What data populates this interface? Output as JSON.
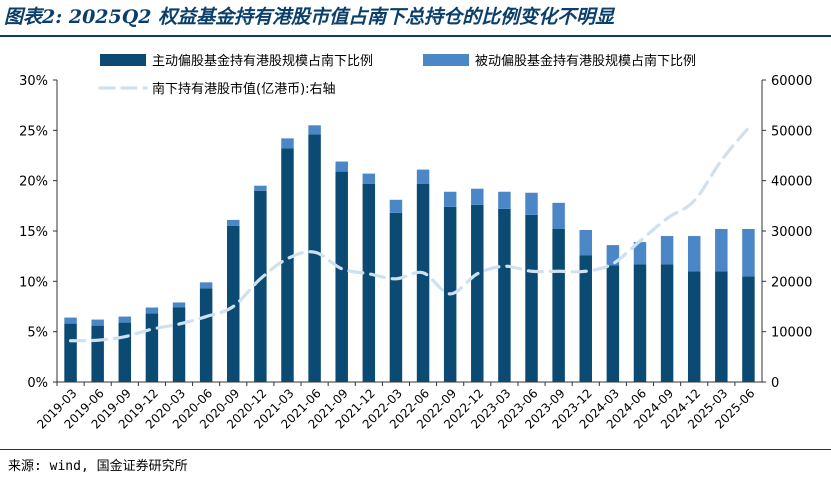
{
  "title": "图表2: 2025Q2 权益基金持有港股市值占南下总持仓的比例变化不明显",
  "source": "来源: wind, 国金证券研究所",
  "colors": {
    "active": "#0b4a72",
    "passive": "#4b87c6",
    "line": "#cfe0ef",
    "title": "#0b3f6b"
  },
  "chart_data": {
    "type": "bar",
    "stacked": true,
    "categories": [
      "2019-03",
      "2019-06",
      "2019-09",
      "2019-12",
      "2020-03",
      "2020-06",
      "2020-09",
      "2020-12",
      "2021-03",
      "2021-06",
      "2021-09",
      "2021-12",
      "2022-03",
      "2022-06",
      "2022-09",
      "2022-12",
      "2023-03",
      "2023-06",
      "2023-09",
      "2023-12",
      "2024-03",
      "2024-06",
      "2024-09",
      "2024-12",
      "2025-03",
      "2025-06"
    ],
    "series": [
      {
        "name": "主动偏股基金持有港股规模占南下比例",
        "axis": "left",
        "type": "bar",
        "values": [
          5.8,
          5.6,
          5.9,
          6.8,
          7.4,
          9.3,
          15.5,
          19.0,
          23.2,
          24.6,
          20.9,
          19.7,
          16.8,
          19.7,
          17.4,
          17.6,
          17.2,
          16.6,
          15.2,
          12.6,
          11.6,
          11.7,
          11.7,
          11.0,
          11.0,
          10.5
        ]
      },
      {
        "name": "被动偏股基金持有港股规模占南下比例",
        "axis": "left",
        "type": "bar",
        "values": [
          0.6,
          0.6,
          0.6,
          0.6,
          0.5,
          0.6,
          0.6,
          0.5,
          1.0,
          0.9,
          1.0,
          1.0,
          1.3,
          1.4,
          1.5,
          1.6,
          1.7,
          2.2,
          2.6,
          2.5,
          2.0,
          2.2,
          2.8,
          3.5,
          4.2,
          4.7
        ]
      },
      {
        "name": "南下持有港股市值(亿港币):右轴",
        "axis": "right",
        "type": "line",
        "dashed": true,
        "values": [
          8200,
          8300,
          9000,
          10500,
          11500,
          13000,
          15000,
          20500,
          24500,
          25800,
          22500,
          21500,
          20500,
          21700,
          17500,
          21500,
          23000,
          22000,
          22000,
          22000,
          23500,
          28000,
          32500,
          36000,
          44000,
          50500
        ]
      }
    ],
    "y_left": {
      "min": 0,
      "max": 30,
      "step": 5,
      "format": "percent",
      "ticks": [
        "0%",
        "5%",
        "10%",
        "15%",
        "20%",
        "25%",
        "30%"
      ]
    },
    "y_right": {
      "min": 0,
      "max": 60000,
      "step": 10000,
      "ticks": [
        "0",
        "10000",
        "20000",
        "30000",
        "40000",
        "50000",
        "60000"
      ]
    },
    "legend": "top",
    "grid": false
  }
}
